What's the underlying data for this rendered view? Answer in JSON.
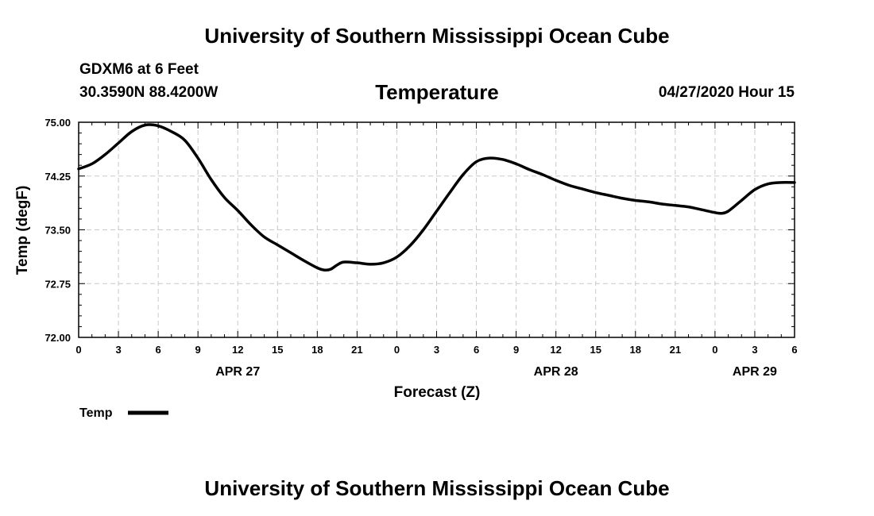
{
  "header": {
    "title": "University of Southern Mississippi Ocean Cube",
    "station": "GDXM6 at 6 Feet",
    "coords": "30.3590N 88.4200W",
    "variable": "Temperature",
    "timestamp": "04/27/2020 Hour 15"
  },
  "footer": {
    "title": "University of Southern Mississippi Ocean Cube"
  },
  "colors": {
    "line": "#000000",
    "grid": "#c8c8c8"
  },
  "chart_data": {
    "type": "line",
    "title": "Temperature",
    "xlabel": "Forecast (Z)",
    "ylabel": "Temp (degF)",
    "xlim": [
      0,
      54
    ],
    "ylim": [
      72.0,
      75.0
    ],
    "x_ticks": [
      0,
      3,
      6,
      9,
      12,
      15,
      18,
      21,
      24,
      27,
      30,
      33,
      36,
      39,
      42,
      45,
      48,
      51,
      54
    ],
    "x_tick_labels": [
      "0",
      "3",
      "6",
      "9",
      "12",
      "15",
      "18",
      "21",
      "0",
      "3",
      "6",
      "9",
      "12",
      "15",
      "18",
      "21",
      "0",
      "3",
      "6"
    ],
    "y_ticks": [
      72.0,
      72.75,
      73.5,
      74.25,
      75.0
    ],
    "y_tick_labels": [
      "72.00",
      "72.75",
      "73.50",
      "74.25",
      "75.00"
    ],
    "day_labels": [
      {
        "x": 12,
        "label": "APR 27"
      },
      {
        "x": 36,
        "label": "APR 28"
      },
      {
        "x": 51,
        "label": "APR 29"
      }
    ],
    "grid": true,
    "legend_position": "bottom-left",
    "series": [
      {
        "name": "Temp",
        "x": [
          0,
          1,
          2,
          3,
          4,
          5,
          6,
          7,
          8,
          9,
          10,
          11,
          12,
          13,
          14,
          15,
          16,
          17,
          18,
          18.5,
          19,
          19.5,
          20,
          21,
          22,
          23,
          24,
          25,
          26,
          27,
          28,
          29,
          30,
          31,
          32,
          33,
          34,
          35,
          36,
          37,
          38,
          39,
          40,
          41,
          42,
          43,
          44,
          45,
          46,
          47,
          48,
          48.5,
          49,
          50,
          51,
          52,
          53,
          54
        ],
        "values": [
          74.35,
          74.42,
          74.55,
          74.71,
          74.87,
          74.96,
          74.95,
          74.87,
          74.75,
          74.5,
          74.2,
          73.95,
          73.77,
          73.57,
          73.4,
          73.29,
          73.18,
          73.07,
          72.97,
          72.94,
          72.95,
          73.01,
          73.05,
          73.04,
          73.02,
          73.04,
          73.12,
          73.28,
          73.5,
          73.76,
          74.02,
          74.27,
          74.45,
          74.5,
          74.48,
          74.42,
          74.34,
          74.27,
          74.19,
          74.12,
          74.07,
          74.02,
          73.98,
          73.94,
          73.91,
          73.89,
          73.86,
          73.84,
          73.82,
          73.78,
          73.74,
          73.73,
          73.76,
          73.91,
          74.06,
          74.14,
          74.16,
          74.16
        ]
      }
    ]
  }
}
